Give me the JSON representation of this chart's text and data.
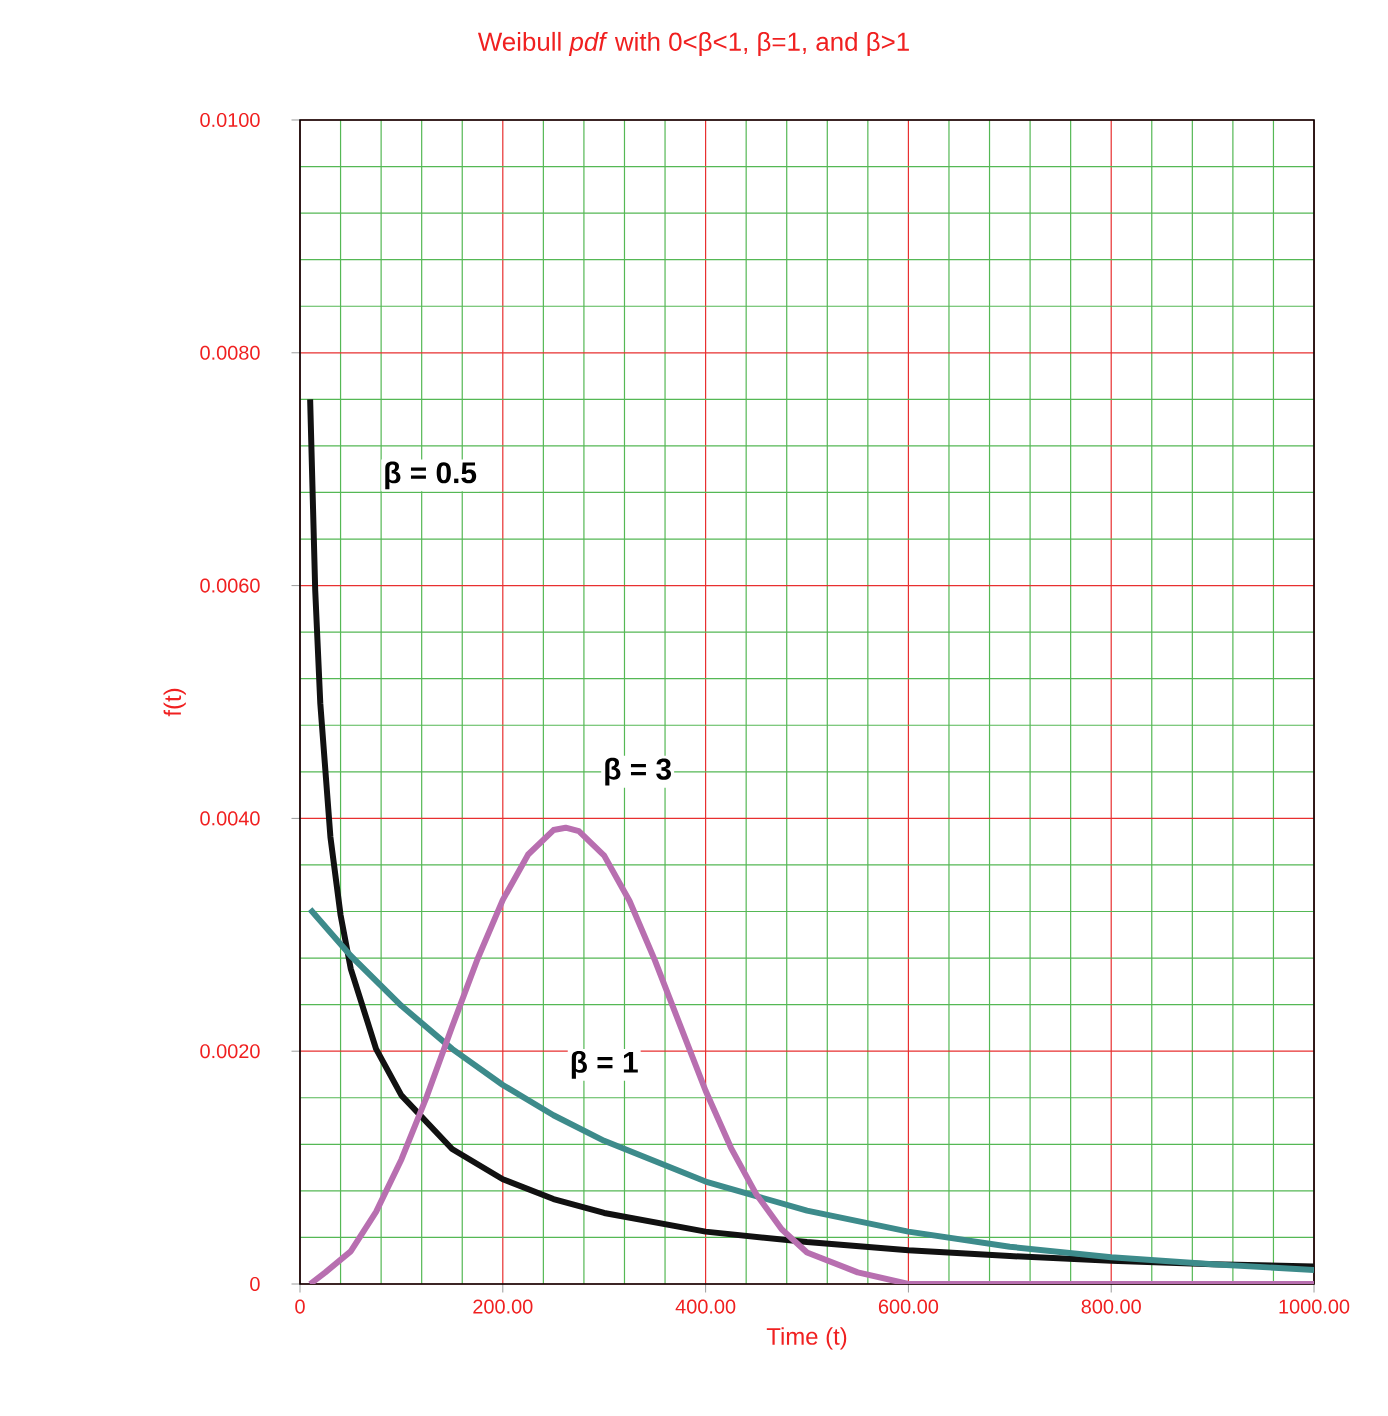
{
  "chart_data": {
    "type": "line",
    "title": "Weibull *pdf* with 0<β<1, β=1, and β>1",
    "xlabel": "Time (t)",
    "ylabel": "f(t)",
    "xlim": [
      0,
      1000
    ],
    "ylim": [
      0,
      0.01
    ],
    "xticks": [
      0,
      {
        "value": 40,
        "label": null
      },
      {
        "value": 80,
        "label": null
      },
      {
        "value": 120,
        "label": null
      },
      {
        "value": 160,
        "label": null
      },
      {
        "value": 200,
        "label": "200.00"
      },
      {
        "value": 240,
        "label": null
      },
      {
        "value": 280,
        "label": null
      },
      {
        "value": 320,
        "label": null
      },
      {
        "value": 360,
        "label": null
      },
      {
        "value": 400,
        "label": "400.00"
      },
      {
        "value": 440,
        "label": null
      },
      {
        "value": 480,
        "label": null
      },
      {
        "value": 520,
        "label": null
      },
      {
        "value": 560,
        "label": null
      },
      {
        "value": 600,
        "label": "600.00"
      },
      {
        "value": 640,
        "label": null
      },
      {
        "value": 680,
        "label": null
      },
      {
        "value": 720,
        "label": null
      },
      {
        "value": 760,
        "label": null
      },
      {
        "value": 800,
        "label": "800.00"
      },
      {
        "value": 840,
        "label": null
      },
      {
        "value": 880,
        "label": null
      },
      {
        "value": 920,
        "label": null
      },
      {
        "value": 960,
        "label": null
      },
      {
        "value": 1000,
        "label": "1000.00"
      }
    ],
    "yticks": [
      0,
      {
        "value": 0.0004,
        "label": null
      },
      {
        "value": 0.0008,
        "label": null
      },
      {
        "value": 0.0012,
        "label": null
      },
      {
        "value": 0.0016,
        "label": null
      },
      {
        "value": 0.002,
        "label": "0.0020"
      },
      {
        "value": 0.0024,
        "label": null
      },
      {
        "value": 0.0028,
        "label": null
      },
      {
        "value": 0.0032,
        "label": null
      },
      {
        "value": 0.0036,
        "label": null
      },
      {
        "value": 0.004,
        "label": "0.0040"
      },
      {
        "value": 0.0044,
        "label": null
      },
      {
        "value": 0.0048,
        "label": null
      },
      {
        "value": 0.0052,
        "label": null
      },
      {
        "value": 0.0056,
        "label": null
      },
      {
        "value": 0.006,
        "label": "0.0060"
      },
      {
        "value": 0.0064,
        "label": null
      },
      {
        "value": 0.0068,
        "label": null
      },
      {
        "value": 0.0072,
        "label": null
      },
      {
        "value": 0.0076,
        "label": null
      },
      {
        "value": 0.008,
        "label": "0.0080"
      },
      {
        "value": 0.0084,
        "label": null
      },
      {
        "value": 0.0088,
        "label": null
      },
      {
        "value": 0.0092,
        "label": null
      },
      {
        "value": 0.0096,
        "label": null
      },
      {
        "value": 0.01,
        "label": "0.0100"
      }
    ],
    "grid": true,
    "marker": "none",
    "line_style": "solid",
    "series": [
      {
        "name": "β = 0.5",
        "color": "#111111",
        "x": [
          10,
          15,
          20,
          30,
          40,
          50,
          75,
          100,
          150,
          200,
          250,
          300,
          400,
          500,
          600,
          700,
          800,
          900,
          1000
        ],
        "values": [
          0.0076,
          0.00596,
          0.00499,
          0.00384,
          0.00317,
          0.00271,
          0.00202,
          0.00162,
          0.00116,
          0.0009,
          0.00073,
          0.00061,
          0.00045,
          0.00036,
          0.00029,
          0.00024,
          0.0002,
          0.00017,
          0.00015
        ]
      },
      {
        "name": "β = 1",
        "color": "#3d8b8b",
        "x": [
          10,
          50,
          100,
          150,
          200,
          250,
          300,
          400,
          500,
          600,
          700,
          800,
          900,
          1000
        ],
        "values": [
          0.00322,
          0.00282,
          0.00239,
          0.00202,
          0.00171,
          0.00145,
          0.00123,
          0.00088,
          0.00063,
          0.00045,
          0.00032,
          0.00023,
          0.00017,
          0.00012
        ]
      },
      {
        "name": "β = 3",
        "color": "#b86fb0",
        "x": [
          10,
          25,
          50,
          75,
          100,
          125,
          150,
          175,
          200,
          225,
          250,
          262,
          275,
          300,
          325,
          350,
          375,
          400,
          425,
          450,
          475,
          500,
          550,
          600,
          700,
          800,
          1000
        ],
        "values": [
          0,
          0.0001,
          0.00028,
          0.00062,
          0.00107,
          0.00161,
          0.00221,
          0.00279,
          0.0033,
          0.00369,
          0.0039,
          0.00392,
          0.00389,
          0.00368,
          0.00329,
          0.00278,
          0.00222,
          0.00166,
          0.00117,
          0.00077,
          0.00047,
          0.00027,
          0.0001,
          0,
          0,
          0,
          0
        ]
      }
    ]
  }
}
